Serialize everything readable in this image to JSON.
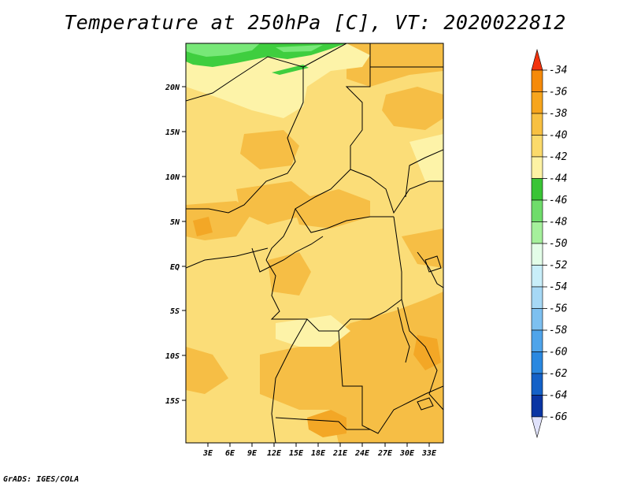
{
  "title": "Temperature at 250hPa [C], VT: 2020022812",
  "credit": "GrADS: IGES/COLA",
  "map": {
    "lat_labels": [
      "20N",
      "15N",
      "10N",
      "5N",
      "EQ",
      "5S",
      "10S",
      "15S"
    ],
    "lon_labels": [
      "3E",
      "6E",
      "9E",
      "12E",
      "15E",
      "18E",
      "21E",
      "24E",
      "27E",
      "30E",
      "33E"
    ],
    "field_colors": {
      "c36": "#f3a726",
      "c38": "#f6be45",
      "c40": "#fbdd78",
      "c42": "#fdf3a8",
      "c44": "#3fce3f",
      "c46": "#78e878"
    }
  },
  "colorbar": {
    "levels": [
      "-34",
      "-36",
      "-38",
      "-40",
      "-42",
      "-44",
      "-46",
      "-48",
      "-50",
      "-52",
      "-54",
      "-56",
      "-58",
      "-60",
      "-62",
      "-64",
      "-66"
    ],
    "colors": [
      "#f2650d",
      "#f58a0a",
      "#f7a51d",
      "#f8c041",
      "#fbda6b",
      "#fdf2a4",
      "#3ac436",
      "#6fdc6b",
      "#a5f09c",
      "#e3fde8",
      "#c8eef9",
      "#a6d8f5",
      "#7dc0f0",
      "#4fa4ea",
      "#2a88e0",
      "#1461c7",
      "#0a35a3",
      "#071670"
    ],
    "top_color": "#f2330d",
    "bottom_color": "#e0e2fb"
  }
}
